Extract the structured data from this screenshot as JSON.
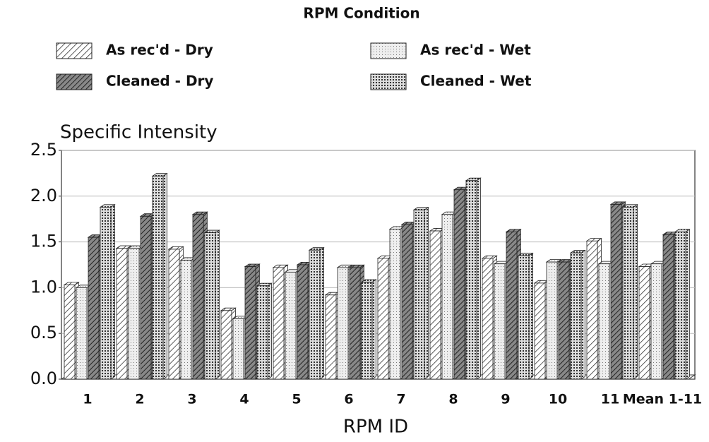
{
  "chart_data": {
    "type": "bar3d",
    "legend_title": "RPM Condition",
    "ylabel": "Specific Intensity",
    "xlabel": "RPM ID",
    "categories": [
      "1",
      "2",
      "3",
      "4",
      "5",
      "6",
      "7",
      "8",
      "9",
      "10",
      "11",
      "Mean 1-11"
    ],
    "series": [
      {
        "name": "As rec'd - Dry",
        "color": "#ffffff",
        "values": [
          1.03,
          1.43,
          1.42,
          0.75,
          1.22,
          0.92,
          1.32,
          1.62,
          1.32,
          1.05,
          1.51,
          1.23
        ]
      },
      {
        "name": "As rec'd - Wet",
        "color": "#eeeeee",
        "values": [
          1.0,
          1.43,
          1.3,
          0.66,
          1.17,
          1.22,
          1.64,
          1.8,
          1.26,
          1.28,
          1.26,
          1.26
        ]
      },
      {
        "name": "Cleaned - Dry",
        "color": "#888888",
        "values": [
          1.55,
          1.78,
          1.8,
          1.23,
          1.25,
          1.22,
          1.69,
          2.07,
          1.61,
          1.28,
          1.91,
          1.58
        ]
      },
      {
        "name": "Cleaned - Wet",
        "color": "#dddddd",
        "values": [
          1.88,
          2.22,
          1.6,
          1.02,
          1.41,
          1.06,
          1.85,
          2.17,
          1.35,
          1.38,
          1.88,
          1.61
        ]
      }
    ],
    "ylim": [
      0,
      2.5
    ],
    "yticks": [
      {
        "value": 0,
        "label": "0.0"
      },
      0.5,
      {
        "value": 1,
        "label": "1.0"
      },
      1.5,
      {
        "value": 2,
        "label": "2.0"
      },
      2.5
    ],
    "grid": true
  }
}
